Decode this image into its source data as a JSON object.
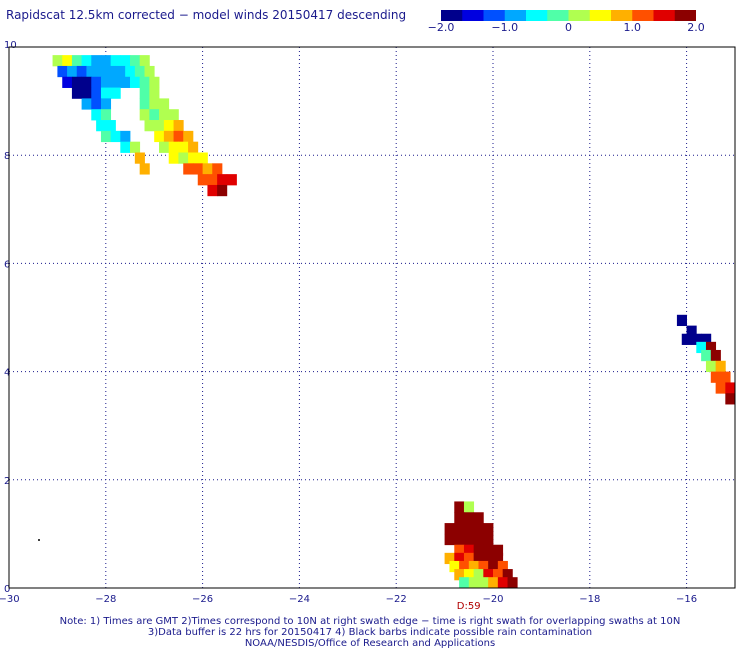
{
  "title": "Rapidscat 12.5km corrected − model winds 20150417 descending",
  "colorbar": {
    "colors": [
      "#00008c",
      "#0000e0",
      "#0050ff",
      "#00a8ff",
      "#00ffff",
      "#50ffa8",
      "#b0ff50",
      "#ffff00",
      "#ffb000",
      "#ff5000",
      "#e00000",
      "#8c0000"
    ],
    "ticks": [
      {
        "value": -2.0,
        "label": "−2.0"
      },
      {
        "value": -1.0,
        "label": "−1.0"
      },
      {
        "value": 0,
        "label": "0"
      },
      {
        "value": 1.0,
        "label": "1.0"
      },
      {
        "value": 2.0,
        "label": "2.0"
      }
    ],
    "range": [
      -2.0,
      2.0
    ]
  },
  "axes": {
    "lon_range": [
      -30,
      -15
    ],
    "lat_range": [
      0,
      10
    ],
    "x_ticks": [
      {
        "value": -30,
        "label": "−30"
      },
      {
        "value": -28,
        "label": "−28"
      },
      {
        "value": -26,
        "label": "−26"
      },
      {
        "value": -24,
        "label": "−24"
      },
      {
        "value": -22,
        "label": "−22"
      },
      {
        "value": -20,
        "label": "−20"
      },
      {
        "value": -18,
        "label": "−18"
      },
      {
        "value": -16,
        "label": "−16"
      }
    ],
    "y_ticks": [
      {
        "value": 0,
        "label": "0"
      },
      {
        "value": 2,
        "label": "2"
      },
      {
        "value": 4,
        "label": "4"
      },
      {
        "value": 6,
        "label": "6"
      },
      {
        "value": 8,
        "label": "8"
      },
      {
        "value": 10,
        "label": "10"
      }
    ],
    "grid": true
  },
  "time_label": {
    "text": "D:59",
    "lon": -20.5,
    "lat": -0.35
  },
  "swaths": [
    {
      "name": "northwest",
      "cells": [
        [
          -29.0,
          9.75,
          0.2
        ],
        [
          -28.8,
          9.75,
          0.4
        ],
        [
          -28.6,
          9.75,
          -0.3
        ],
        [
          -28.4,
          9.75,
          -0.5
        ],
        [
          -28.2,
          9.75,
          -0.7
        ],
        [
          -28.0,
          9.75,
          -0.8
        ],
        [
          -27.8,
          9.75,
          -0.6
        ],
        [
          -27.6,
          9.75,
          -0.4
        ],
        [
          -27.4,
          9.75,
          -0.2
        ],
        [
          -27.2,
          9.75,
          0.1
        ],
        [
          -28.9,
          9.55,
          -1.2
        ],
        [
          -28.7,
          9.55,
          -1.0
        ],
        [
          -28.5,
          9.55,
          -1.1
        ],
        [
          -28.3,
          9.55,
          -0.9
        ],
        [
          -28.1,
          9.55,
          -1.0
        ],
        [
          -27.9,
          9.55,
          -0.7
        ],
        [
          -27.7,
          9.55,
          -0.8
        ],
        [
          -27.5,
          9.55,
          -0.6
        ],
        [
          -27.3,
          9.55,
          -0.3
        ],
        [
          -27.1,
          9.55,
          0.0
        ],
        [
          -28.8,
          9.35,
          -1.4
        ],
        [
          -28.6,
          9.35,
          -1.9
        ],
        [
          -28.4,
          9.35,
          -1.7
        ],
        [
          -28.2,
          9.35,
          -1.2
        ],
        [
          -28.0,
          9.35,
          -1.0
        ],
        [
          -27.8,
          9.35,
          -0.7
        ],
        [
          -27.6,
          9.35,
          -0.9
        ],
        [
          -27.4,
          9.35,
          -0.5
        ],
        [
          -27.2,
          9.35,
          -0.2
        ],
        [
          -27.0,
          9.35,
          0.1
        ],
        [
          -28.6,
          9.15,
          -2.0
        ],
        [
          -28.4,
          9.15,
          -1.8
        ],
        [
          -28.2,
          9.15,
          -1.3
        ],
        [
          -28.0,
          9.15,
          -0.6
        ],
        [
          -27.8,
          9.15,
          -0.4
        ],
        [
          -27.2,
          9.15,
          -0.1
        ],
        [
          -27.0,
          9.15,
          0.2
        ],
        [
          -28.4,
          8.95,
          -1.0
        ],
        [
          -28.2,
          8.95,
          -1.1
        ],
        [
          -28.0,
          8.95,
          -0.8
        ],
        [
          -27.2,
          8.95,
          -0.2
        ],
        [
          -27.0,
          8.95,
          0.0
        ],
        [
          -26.8,
          8.95,
          0.1
        ],
        [
          -28.2,
          8.75,
          -0.5
        ],
        [
          -28.0,
          8.75,
          -0.3
        ],
        [
          -27.2,
          8.75,
          0.0
        ],
        [
          -27.0,
          8.75,
          -0.1
        ],
        [
          -26.8,
          8.75,
          0.2
        ],
        [
          -26.6,
          8.75,
          0.3
        ],
        [
          -28.1,
          8.55,
          -0.4
        ],
        [
          -27.9,
          8.55,
          -0.6
        ],
        [
          -27.1,
          8.55,
          0.3
        ],
        [
          -26.9,
          8.55,
          0.2
        ],
        [
          -26.7,
          8.55,
          0.5
        ],
        [
          -26.5,
          8.55,
          0.7
        ],
        [
          -28.0,
          8.35,
          -0.3
        ],
        [
          -27.8,
          8.35,
          -0.5
        ],
        [
          -27.6,
          8.35,
          -0.7
        ],
        [
          -26.9,
          8.35,
          0.6
        ],
        [
          -26.7,
          8.35,
          0.9
        ],
        [
          -26.5,
          8.35,
          1.0
        ],
        [
          -26.3,
          8.35,
          0.8
        ],
        [
          -27.6,
          8.15,
          -0.4
        ],
        [
          -27.4,
          8.15,
          0.1
        ],
        [
          -26.8,
          8.15,
          0.2
        ],
        [
          -26.6,
          8.15,
          0.4
        ],
        [
          -26.4,
          8.15,
          0.5
        ],
        [
          -26.2,
          8.15,
          0.7
        ],
        [
          -27.3,
          7.95,
          0.9
        ],
        [
          -26.6,
          7.95,
          0.5
        ],
        [
          -26.4,
          7.95,
          0.3
        ],
        [
          -26.2,
          7.95,
          0.6
        ],
        [
          -26.0,
          7.95,
          0.4
        ],
        [
          -27.2,
          7.75,
          0.9
        ],
        [
          -26.3,
          7.75,
          1.0
        ],
        [
          -26.1,
          7.75,
          1.1
        ],
        [
          -25.9,
          7.75,
          0.8
        ],
        [
          -25.7,
          7.75,
          1.0
        ],
        [
          -26.0,
          7.55,
          1.2
        ],
        [
          -25.8,
          7.55,
          1.3
        ],
        [
          -25.6,
          7.55,
          1.5
        ],
        [
          -25.4,
          7.55,
          1.6
        ],
        [
          -25.8,
          7.35,
          1.4
        ],
        [
          -25.6,
          7.35,
          1.7
        ]
      ]
    },
    {
      "name": "east",
      "cells": [
        [
          -16.1,
          4.95,
          -1.8
        ],
        [
          -15.9,
          4.75,
          -1.9
        ],
        [
          -16.0,
          4.6,
          -1.8
        ],
        [
          -15.8,
          4.6,
          -1.9
        ],
        [
          -15.6,
          4.6,
          -1.7
        ],
        [
          -15.7,
          4.45,
          -0.5
        ],
        [
          -15.5,
          4.45,
          2.0
        ],
        [
          -15.6,
          4.3,
          -0.2
        ],
        [
          -15.4,
          4.3,
          2.0
        ],
        [
          -15.5,
          4.1,
          0.3
        ],
        [
          -15.3,
          4.1,
          0.7
        ],
        [
          -15.4,
          3.9,
          1.2
        ],
        [
          -15.2,
          3.9,
          1.3
        ],
        [
          -15.3,
          3.7,
          1.2
        ],
        [
          -15.1,
          3.7,
          1.4
        ],
        [
          -15.1,
          3.5,
          1.9
        ]
      ]
    },
    {
      "name": "south",
      "cells": [
        [
          -20.7,
          1.5,
          2.0
        ],
        [
          -20.5,
          1.5,
          0.3
        ],
        [
          -20.7,
          1.3,
          2.0
        ],
        [
          -20.5,
          1.3,
          1.9
        ],
        [
          -20.3,
          1.3,
          2.0
        ],
        [
          -20.9,
          1.1,
          2.0
        ],
        [
          -20.7,
          1.1,
          2.0
        ],
        [
          -20.5,
          1.1,
          1.9
        ],
        [
          -20.3,
          1.1,
          2.0
        ],
        [
          -20.1,
          1.1,
          2.0
        ],
        [
          -20.9,
          0.9,
          2.0
        ],
        [
          -20.7,
          0.9,
          1.9
        ],
        [
          -20.5,
          0.9,
          2.0
        ],
        [
          -20.3,
          0.9,
          2.0
        ],
        [
          -20.1,
          0.9,
          2.0
        ],
        [
          -20.7,
          0.7,
          1.3
        ],
        [
          -20.5,
          0.7,
          1.5
        ],
        [
          -20.3,
          0.7,
          2.0
        ],
        [
          -20.1,
          0.7,
          1.7
        ],
        [
          -19.9,
          0.7,
          2.0
        ],
        [
          -20.9,
          0.55,
          0.7
        ],
        [
          -20.7,
          0.55,
          1.6
        ],
        [
          -20.5,
          0.55,
          1.2
        ],
        [
          -20.3,
          0.55,
          2.0
        ],
        [
          -20.1,
          0.55,
          1.8
        ],
        [
          -19.9,
          0.55,
          2.0
        ],
        [
          -20.8,
          0.4,
          0.6
        ],
        [
          -20.6,
          0.4,
          1.0
        ],
        [
          -20.4,
          0.4,
          0.8
        ],
        [
          -20.2,
          0.4,
          1.3
        ],
        [
          -20.0,
          0.4,
          2.0
        ],
        [
          -19.8,
          0.4,
          1.1
        ],
        [
          -20.7,
          0.25,
          0.7
        ],
        [
          -20.5,
          0.25,
          0.4
        ],
        [
          -20.3,
          0.25,
          0.3
        ],
        [
          -20.1,
          0.25,
          1.5
        ],
        [
          -19.9,
          0.25,
          1.0
        ],
        [
          -19.7,
          0.25,
          1.8
        ],
        [
          -20.6,
          0.1,
          -0.2
        ],
        [
          -20.4,
          0.1,
          0.0
        ],
        [
          -20.2,
          0.1,
          0.1
        ],
        [
          -20.0,
          0.1,
          0.8
        ],
        [
          -19.8,
          0.1,
          1.6
        ],
        [
          -19.6,
          0.1,
          2.0
        ]
      ]
    }
  ],
  "notes": [
    "Note: 1) Times are GMT 2)Times correspond to 10N at right swath edge − time is right swath for overlapping swaths at 10N",
    "3)Data buffer is 22 hrs for 20150417 4) Black barbs indicate possible rain contamination",
    "NOAA/NESDIS/Office of Research and Applications"
  ]
}
